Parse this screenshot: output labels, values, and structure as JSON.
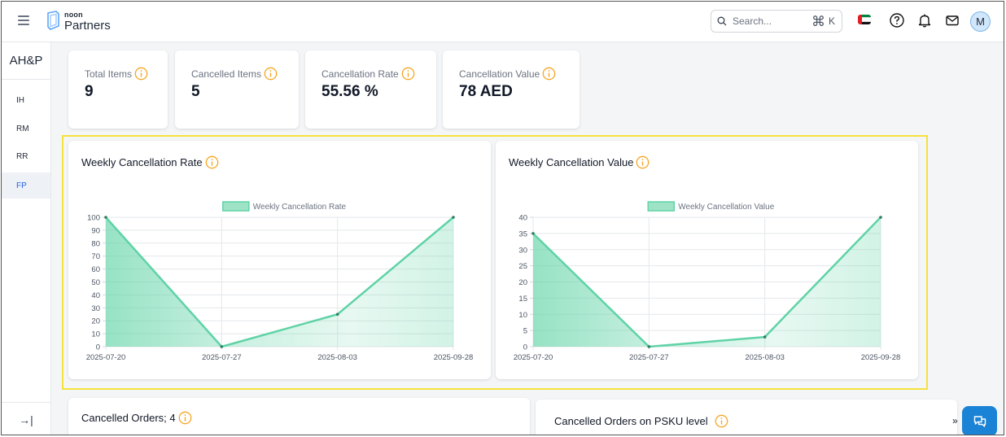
{
  "header": {
    "logo_small": "noon",
    "logo_big": "Partners",
    "search_placeholder": "Search...",
    "search_shortcut_symbol": "⌘",
    "search_shortcut_key": "K",
    "avatar_initial": "M"
  },
  "sidebar": {
    "title": "AH&P",
    "items": [
      {
        "label": "IH",
        "active": false
      },
      {
        "label": "RM",
        "active": false
      },
      {
        "label": "RR",
        "active": false
      },
      {
        "label": "FP",
        "active": true
      }
    ],
    "collapse_symbol": "→|"
  },
  "stats": [
    {
      "label": "Total Items",
      "value": "9"
    },
    {
      "label": "Cancelled Items",
      "value": "5"
    },
    {
      "label": "Cancellation Rate",
      "value": "55.56 %"
    },
    {
      "label": "Cancellation Value",
      "value": "78 AED"
    }
  ],
  "chart_data": [
    {
      "type": "area",
      "title": "Weekly Cancellation Rate",
      "x": [
        "2025-07-20",
        "2025-07-27",
        "2025-08-03",
        "2025-09-28"
      ],
      "series": [
        {
          "name": "Weekly Cancellation Rate",
          "values": [
            100,
            0,
            25,
            100
          ]
        }
      ],
      "ylim": [
        0,
        100
      ],
      "yticks": [
        0,
        10,
        20,
        30,
        40,
        50,
        60,
        70,
        80,
        90,
        100
      ],
      "legend": "top-center",
      "grid": true
    },
    {
      "type": "area",
      "title": "Weekly Cancellation Value",
      "x": [
        "2025-07-20",
        "2025-07-27",
        "2025-08-03",
        "2025-09-28"
      ],
      "series": [
        {
          "name": "Weekly Cancellation Value",
          "values": [
            35,
            0,
            3,
            40
          ]
        }
      ],
      "ylim": [
        0,
        40
      ],
      "yticks": [
        0,
        5,
        10,
        15,
        20,
        25,
        30,
        35,
        40
      ],
      "legend": "top-center",
      "grid": true
    }
  ],
  "bottom": {
    "cancelled_orders_title": "Cancelled Orders; 4",
    "psku_title": "Cancelled Orders on PSKU level",
    "chevron": "»"
  },
  "colors": {
    "accent": "#f5a623",
    "series": "#5fd3a6",
    "series_fill": "#9fe3c7",
    "highlight": "#f5e23c",
    "chat_button": "#1a83d6"
  }
}
